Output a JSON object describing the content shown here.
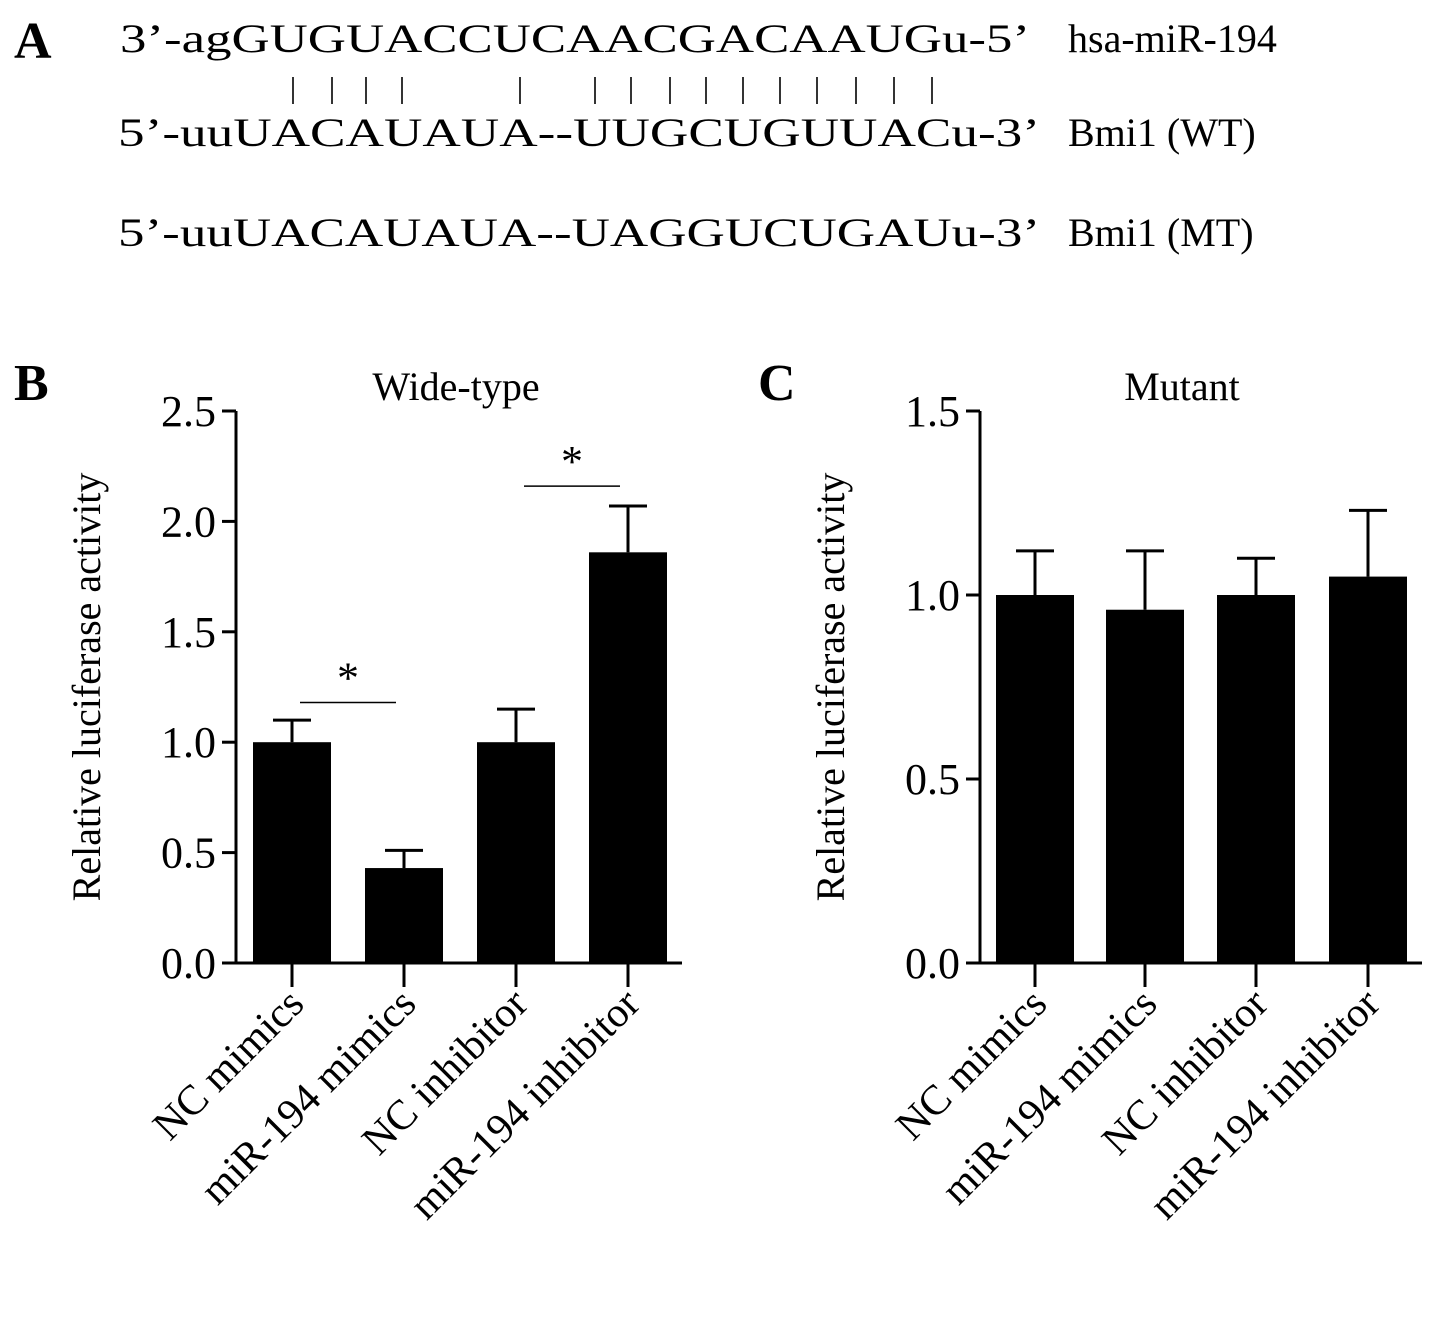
{
  "panel_a": {
    "letter": "A",
    "rows": [
      {
        "sequence": "3’-agGUGUACCUCAACGACAAUGu-5’",
        "label": "hsa-miR-194"
      },
      {
        "sequence": "5’-uuUACAUAUA--UUGCUGUUACu-3’",
        "label": "Bmi1 (WT)"
      },
      {
        "sequence": "5’-uuUACAUAUA--UAGGUCUGAUu-3’",
        "label": "Bmi1 (MT)"
      }
    ],
    "pairing_marks": "|  |  |  |       |     |  |  |  |  |  |  |  |  |  |"
  },
  "chart_data": [
    {
      "panel": "B",
      "type": "bar",
      "title": "Wide-type",
      "ylabel": "Relative luciferase activity",
      "xlabel": "",
      "categories": [
        "NC mimics",
        "miR-194 mimics",
        "NC inhibitor",
        "miR-194 inhibitor"
      ],
      "values": [
        1.0,
        0.43,
        1.0,
        1.86
      ],
      "error_upper": [
        1.1,
        0.51,
        1.15,
        2.07
      ],
      "ylim": [
        0,
        2.5
      ],
      "yticks": [
        "0.0",
        "0.5",
        "1.0",
        "1.5",
        "2.0",
        "2.5"
      ],
      "significance": [
        {
          "between": [
            "NC mimics",
            "miR-194 mimics"
          ],
          "label": "*",
          "level": 1.18
        },
        {
          "between": [
            "NC inhibitor",
            "miR-194 inhibitor"
          ],
          "label": "*",
          "level": 2.16
        }
      ],
      "bar_color": "#000000",
      "grid": false
    },
    {
      "panel": "C",
      "type": "bar",
      "title": "Mutant",
      "ylabel": "Relative luciferase activity",
      "xlabel": "",
      "categories": [
        "NC mimics",
        "miR-194 mimics",
        "NC inhibitor",
        "miR-194 inhibitor"
      ],
      "values": [
        1.0,
        0.96,
        1.0,
        1.05
      ],
      "error_upper": [
        1.12,
        1.12,
        1.1,
        1.23
      ],
      "ylim": [
        0,
        1.5
      ],
      "yticks": [
        "0.0",
        "0.5",
        "1.0",
        "1.5"
      ],
      "significance": [],
      "bar_color": "#000000",
      "grid": false
    }
  ]
}
